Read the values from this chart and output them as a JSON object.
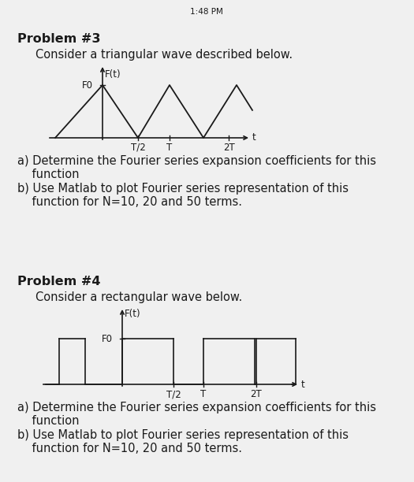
{
  "background_color": "#f0f0f0",
  "status_bar_text": "1:48 PM",
  "prob3_title": "Problem #3",
  "prob3_subtitle": "Consider a triangular wave described below.",
  "prob3_a_line1": "a) Determine the Fourier series expansion coefficients for this",
  "prob3_a_line2": "    function",
  "prob3_b_line1": "b) Use Matlab to plot Fourier series representation of this",
  "prob3_b_line2": "    function for N=10, 20 and 50 terms.",
  "prob4_title": "Problem #4",
  "prob4_subtitle": "Consider a rectangular wave below.",
  "prob4_a_line1": "a) Determine the Fourier series expansion coefficients for this",
  "prob4_a_line2": "    function",
  "prob4_b_line1": "b) Use Matlab to plot Fourier series representation of this",
  "prob4_b_line2": "    function for N=10, 20 and 50 terms.",
  "line_color": "#1a1a1a",
  "text_color": "#1a1a1a",
  "font_size_title": 11.5,
  "font_size_body": 10.5,
  "font_size_small": 9.0
}
